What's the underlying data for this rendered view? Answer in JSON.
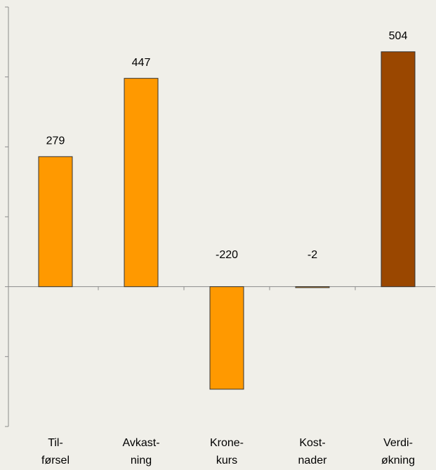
{
  "chart_data": {
    "type": "bar",
    "categories": [
      [
        "Til-",
        "førsel"
      ],
      [
        "Avkast-",
        "ning"
      ],
      [
        "Krone-",
        "kurs"
      ],
      [
        "Kost-",
        "nader"
      ],
      [
        "Verdi-",
        "økning"
      ]
    ],
    "values": [
      279,
      447,
      -220,
      -2,
      504
    ],
    "colors": [
      "#ff9900",
      "#ff9900",
      "#ff9900",
      "#ff9900",
      "#9a4700"
    ],
    "ylim": [
      -300,
      600
    ],
    "yticks": [
      -300,
      -150,
      0,
      150,
      300,
      450,
      600
    ],
    "grid": false
  }
}
